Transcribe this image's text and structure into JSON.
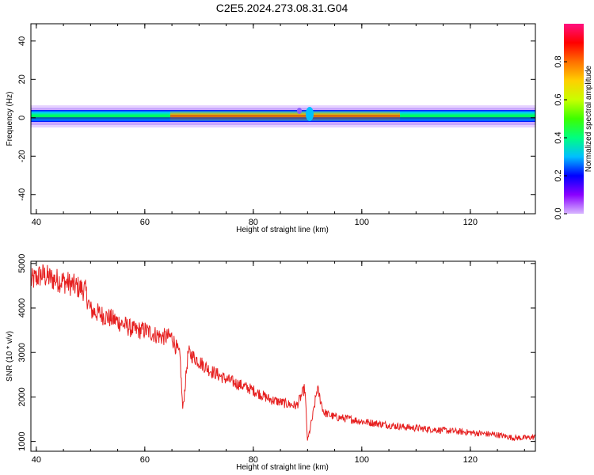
{
  "title": "C2E5.2024.273.08.31.G04",
  "chart_data": [
    {
      "type": "heatmap",
      "xlabel": "Height of straight line (km)",
      "ylabel": "Frequency (Hz)",
      "xlim": [
        39,
        132
      ],
      "ylim": [
        -50,
        49
      ],
      "xticks": [
        "40",
        "60",
        "80",
        "100",
        "120"
      ],
      "yticks": [
        "40",
        "20",
        "0",
        "-20",
        "-40"
      ],
      "colorbar": {
        "label": "Normalized spectral amplitude",
        "range": [
          0.0,
          1.0
        ],
        "ticks": [
          "0.0",
          "0.2",
          "0.4",
          "0.6",
          "0.8"
        ],
        "colors": [
          "#d8b8ff",
          "#8a00ff",
          "#0000ff",
          "#00bfff",
          "#00ff80",
          "#3cff00",
          "#c8ff00",
          "#ffd000",
          "#ff7000",
          "#ff0000",
          "#ff1080"
        ]
      },
      "band": {
        "center_hz": 1,
        "note": "Narrow high-amplitude band near 0–2 Hz across all heights, strongest between ~70 and ~102 km, disturbance near 90 km"
      }
    },
    {
      "type": "line",
      "xlabel": "Height of straight line (km)",
      "ylabel": "SNR (10 * v/v)",
      "xlim": [
        39,
        132
      ],
      "ylim": [
        780,
        5050
      ],
      "xticks": [
        "40",
        "60",
        "80",
        "100",
        "120"
      ],
      "yticks": [
        "5000",
        "4000",
        "3000",
        "2000",
        "1000"
      ],
      "color": "#e62020",
      "x": [
        39,
        41,
        43,
        45,
        47,
        49,
        50,
        52,
        55,
        58,
        60,
        63,
        65,
        66.5,
        67,
        68,
        70,
        72,
        75,
        78,
        80,
        83,
        86,
        88,
        89.5,
        90,
        90.5,
        91,
        91.8,
        93,
        95,
        98,
        100,
        103,
        106,
        110,
        115,
        120,
        125,
        128,
        130,
        132
      ],
      "y": [
        4600,
        4750,
        4650,
        4600,
        4500,
        4400,
        3950,
        3850,
        3700,
        3500,
        3500,
        3350,
        3350,
        2900,
        1700,
        3000,
        2800,
        2600,
        2400,
        2250,
        2150,
        1950,
        1850,
        1800,
        2200,
        1000,
        1300,
        1600,
        2200,
        1650,
        1550,
        1500,
        1450,
        1400,
        1350,
        1300,
        1250,
        1200,
        1150,
        1080,
        1080,
        1100
      ]
    }
  ]
}
